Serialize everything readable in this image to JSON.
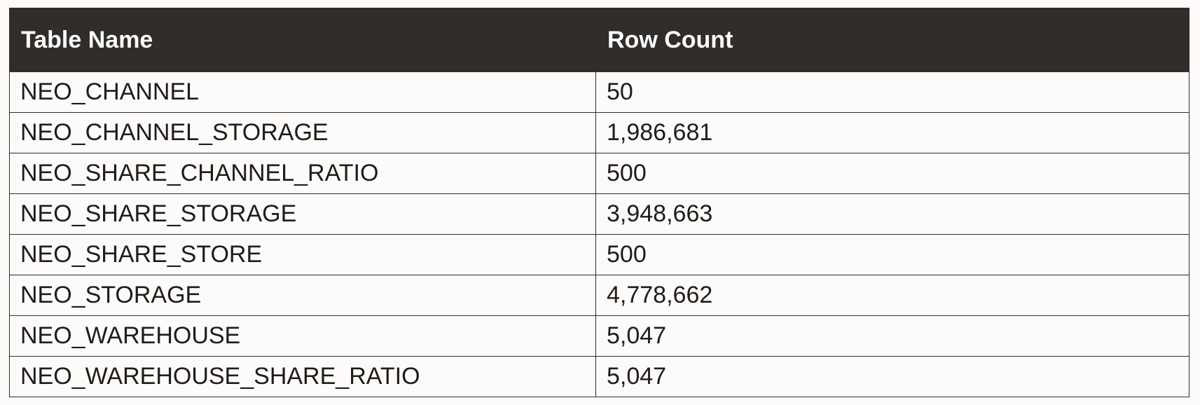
{
  "table": {
    "headers": [
      "Table Name",
      "Row Count"
    ],
    "rows": [
      {
        "name": "NEO_CHANNEL",
        "count": "50"
      },
      {
        "name": "NEO_CHANNEL_STORAGE",
        "count": "1,986,681"
      },
      {
        "name": "NEO_SHARE_CHANNEL_RATIO",
        "count": "500"
      },
      {
        "name": "NEO_SHARE_STORAGE",
        "count": "3,948,663"
      },
      {
        "name": "NEO_SHARE_STORE",
        "count": "500"
      },
      {
        "name": "NEO_STORAGE",
        "count": "4,778,662"
      },
      {
        "name": "NEO_WAREHOUSE",
        "count": "5,047"
      },
      {
        "name": "NEO_WAREHOUSE_SHARE_RATIO",
        "count": "5,047"
      }
    ]
  },
  "colors": {
    "header_bg": "#312d2a",
    "header_text": "#ffffff",
    "body_bg": "#fcfbfa",
    "border": "#312d2a"
  }
}
